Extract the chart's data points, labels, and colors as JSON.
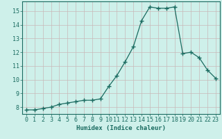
{
  "xlabel": "Humidex (Indice chaleur)",
  "ylabel": "",
  "x": [
    0,
    1,
    2,
    3,
    4,
    5,
    6,
    7,
    8,
    9,
    10,
    11,
    12,
    13,
    14,
    15,
    16,
    17,
    18,
    19,
    20,
    21,
    22,
    23
  ],
  "y": [
    7.8,
    7.8,
    7.9,
    8.0,
    8.2,
    8.3,
    8.4,
    8.5,
    8.5,
    8.6,
    9.5,
    10.3,
    11.3,
    12.4,
    14.3,
    15.3,
    15.2,
    15.2,
    15.3,
    11.9,
    12.0,
    11.6,
    10.7,
    10.1
  ],
  "line_color": "#1a6b60",
  "marker": "+",
  "marker_size": 4,
  "bg_color": "#cef0ea",
  "grid_color": "#c8b8b8",
  "axis_color": "#1a6b60",
  "tick_color": "#1a6b60",
  "label_color": "#1a6b60",
  "ylim": [
    7.5,
    15.7
  ],
  "xlim": [
    -0.5,
    23.5
  ],
  "yticks": [
    8,
    9,
    10,
    11,
    12,
    13,
    14,
    15
  ],
  "xticks": [
    0,
    1,
    2,
    3,
    4,
    5,
    6,
    7,
    8,
    9,
    10,
    11,
    12,
    13,
    14,
    15,
    16,
    17,
    18,
    19,
    20,
    21,
    22,
    23
  ],
  "xlabel_fontsize": 6.5,
  "tick_fontsize": 6.0
}
